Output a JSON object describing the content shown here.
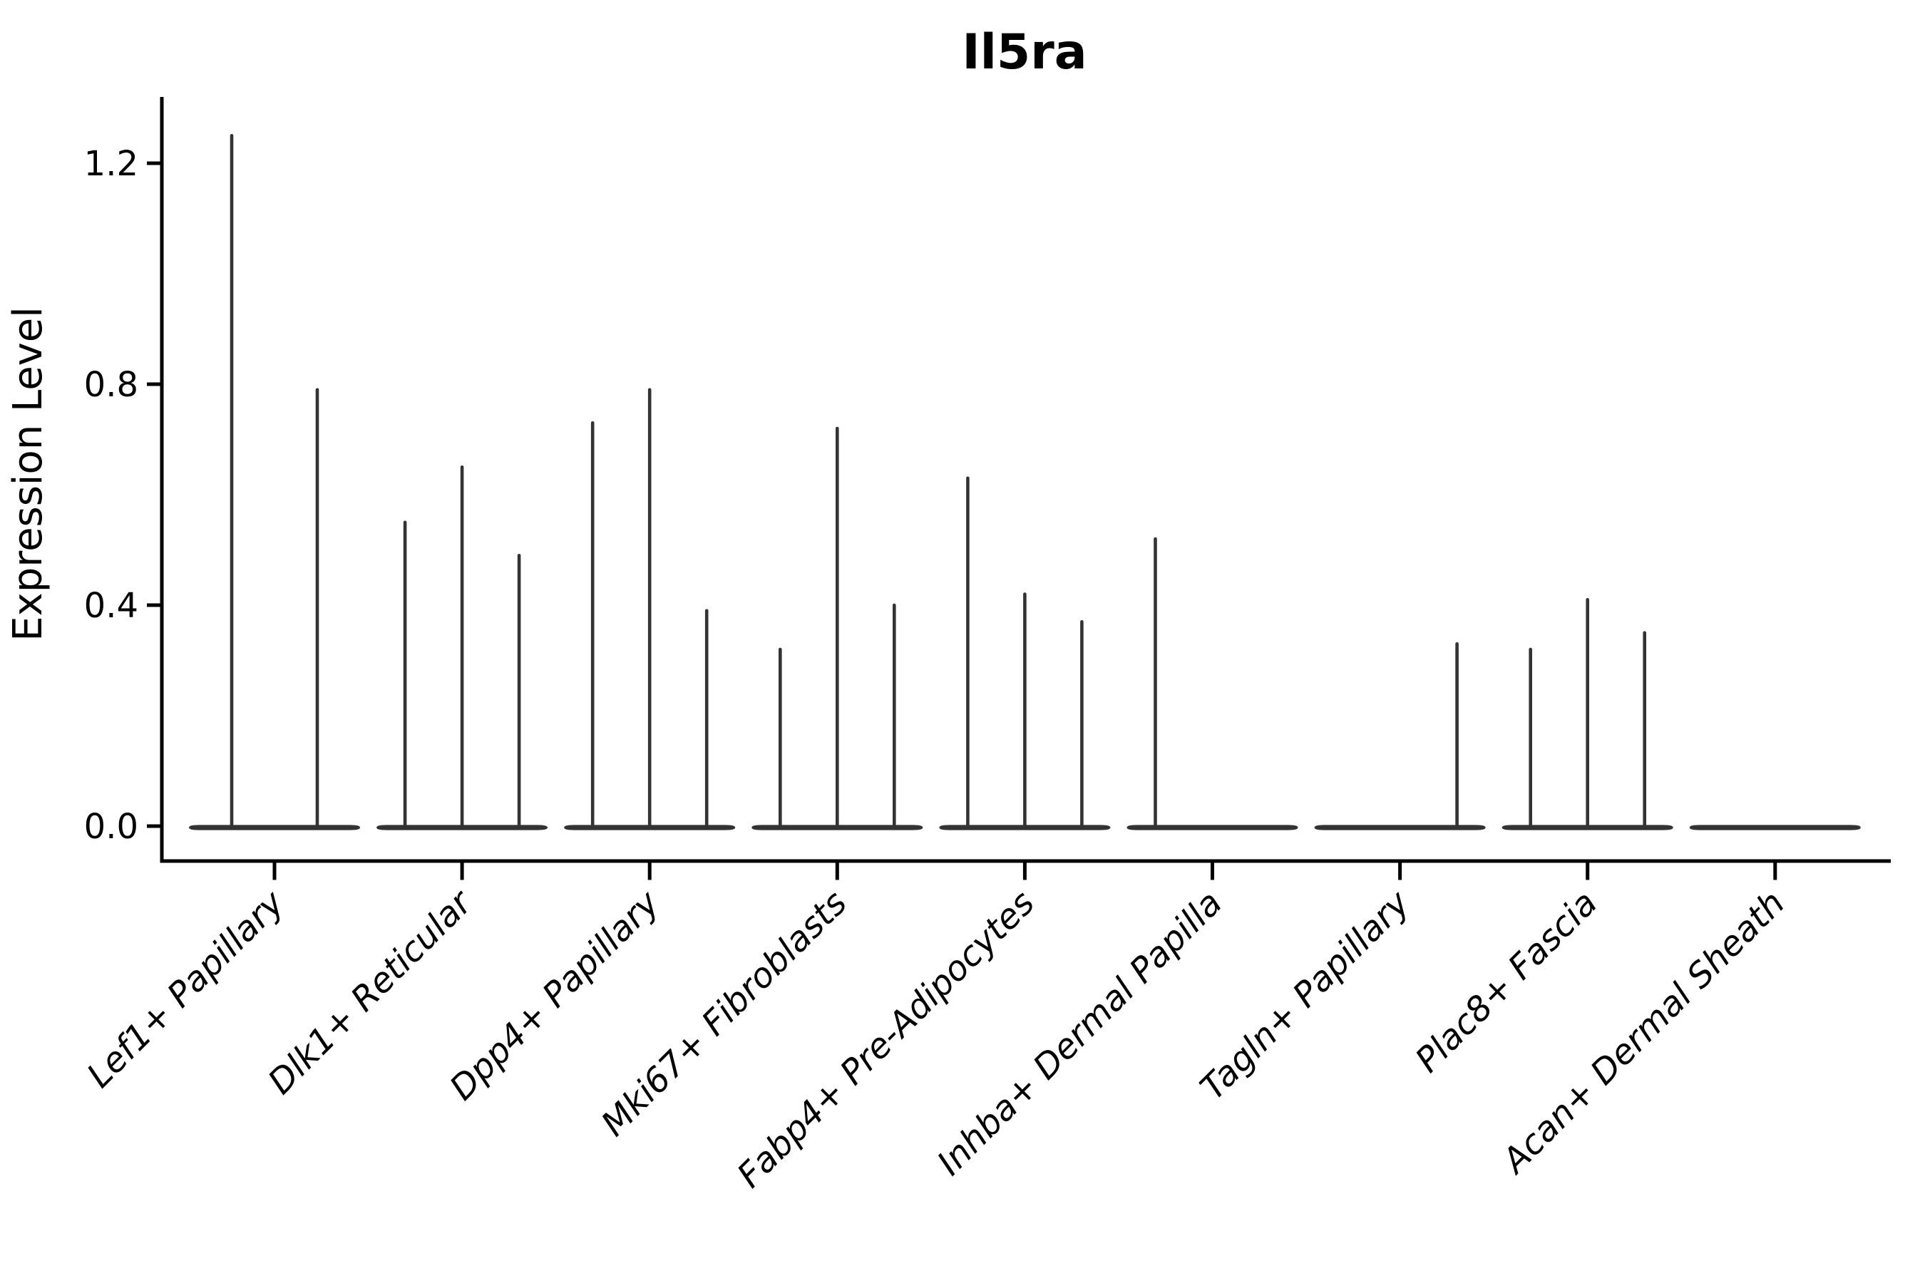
{
  "chart_data": {
    "type": "violin",
    "title": "Il5ra",
    "ylabel": "Expression Level",
    "xlabel": "",
    "grid": false,
    "legend": false,
    "y_axis": {
      "tick_labels": [
        "0.0",
        "0.4",
        "0.8",
        "1.2"
      ],
      "tick_values": [
        0.0,
        0.4,
        0.8,
        1.2
      ],
      "lim": [
        -0.06,
        1.32
      ]
    },
    "categories": [
      "Lef1+ Papillary",
      "Dlk1+ Reticular",
      "Dpp4+ Papillary",
      "Mki67+ Fibroblasts",
      "Fabp4+ Pre-Adipocytes",
      "Inhba+ Dermal Papilla",
      "Tagln+ Papillary",
      "Plac8+ Fascia",
      "Acan+ Dermal Sheath"
    ],
    "groups": [
      {
        "label": "Lef1+ Papillary",
        "violin_maxima": [
          1.25,
          0.79
        ]
      },
      {
        "label": "Dlk1+ Reticular",
        "violin_maxima": [
          0.55,
          0.65,
          0.49
        ]
      },
      {
        "label": "Dpp4+ Papillary",
        "violin_maxima": [
          0.73,
          0.79,
          0.39
        ]
      },
      {
        "label": "Mki67+ Fibroblasts",
        "violin_maxima": [
          0.32,
          0.72,
          0.4
        ]
      },
      {
        "label": "Fabp4+ Pre-Adipocytes",
        "violin_maxima": [
          0.63,
          0.42,
          0.37
        ]
      },
      {
        "label": "Inhba+ Dermal Papilla",
        "violin_maxima": [
          0.52,
          0,
          0
        ]
      },
      {
        "label": "Tagln+ Papillary",
        "violin_maxima": [
          0,
          0,
          0.33
        ]
      },
      {
        "label": "Plac8+ Fascia",
        "violin_maxima": [
          0.32,
          0.41,
          0.35
        ]
      },
      {
        "label": "Acan+ Dermal Sheath",
        "violin_maxima": [
          0,
          0,
          0
        ]
      }
    ],
    "colors": {
      "violin": "#333333",
      "axis": "#000000",
      "text": "#000000",
      "background": "#ffffff"
    }
  }
}
